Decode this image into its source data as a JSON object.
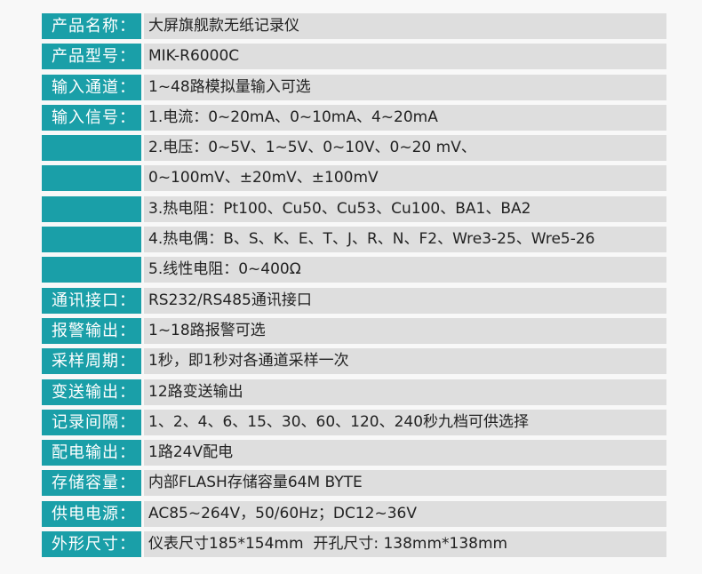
{
  "colors": {
    "label_bg": "#1a9fa8",
    "value_bg": "#dedede",
    "page_bg": "#f8f8f8"
  },
  "rows": [
    {
      "label": "产品名称：",
      "value": "大屏旗舰款无纸记录仪"
    },
    {
      "label": "产品型号：",
      "value": "MIK-R6000C"
    },
    {
      "label": "输入通道：",
      "value": "1~48路模拟量输入可选"
    },
    {
      "label": "输入信号：",
      "value": "1.电流：0~20mA、0~10mA、4~20mA"
    },
    {
      "label": "",
      "value": "2.电压：0~5V、1~5V、0~10V、0~20 mV、"
    },
    {
      "label": "",
      "value": "0~100mV、±20mV、±100mV"
    },
    {
      "label": "",
      "value": "3.热电阻：Pt100、Cu50、Cu53、Cu100、BA1、BA2"
    },
    {
      "label": "",
      "value": "4.热电偶：B、S、K、E、T、J、R、N、F2、Wre3-25、Wre5-26"
    },
    {
      "label": "",
      "value": "5.线性电阻：0~400Ω"
    },
    {
      "label": "通讯接口：",
      "value": "RS232/RS485通讯接口"
    },
    {
      "label": "报警输出：",
      "value": "1~18路报警可选"
    },
    {
      "label": "采样周期：",
      "value": "1秒，即1秒对各通道采样一次"
    },
    {
      "label": "变送输出：",
      "value": "12路变送输出"
    },
    {
      "label": "记录间隔：",
      "value": "1、2、4、6、15、30、60、120、240秒九档可供选择"
    },
    {
      "label": "配电输出：",
      "value": "1路24V配电"
    },
    {
      "label": "存储容量：",
      "value": "内部FLASH存储容量64M BYTE"
    },
    {
      "label": "供电电源：",
      "value": "AC85~264V，50/60Hz；DC12~36V"
    },
    {
      "label": "外形尺寸：",
      "value": "仪表尺寸185*154mm  开孔尺寸: 138mm*138mm"
    }
  ]
}
